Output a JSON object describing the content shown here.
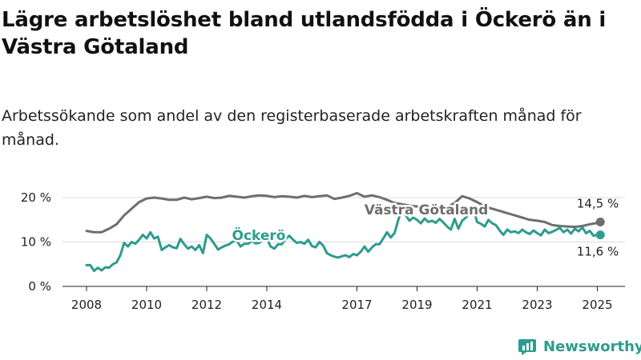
{
  "header": {
    "title": "Lägre arbetslöshet bland utlandsfödda i Öckerö än i Västra Götaland",
    "subtitle": "Arbetssökande som andel av den registerbaserade arbetskraften månad för månad."
  },
  "brand": {
    "name": "Newsworthy",
    "color": "#2c9c8f"
  },
  "chart_data": {
    "type": "line",
    "title": "Lägre arbetslöshet bland utlandsfödda i Öckerö än i Västra Götaland",
    "subtitle": "Arbetssökande som andel av den registerbaserade arbetskraften månad för månad.",
    "xlabel": "",
    "ylabel": "",
    "xlim": [
      2008.0,
      2025.1
    ],
    "ylim": [
      0,
      21
    ],
    "grid": true,
    "y_ticks": [
      {
        "value": 0,
        "label": "0 %"
      },
      {
        "value": 10,
        "label": "10 %"
      },
      {
        "value": 20,
        "label": "20 %"
      }
    ],
    "x_ticks": [
      {
        "value": 2008,
        "label": "2008"
      },
      {
        "value": 2010,
        "label": "2010"
      },
      {
        "value": 2012,
        "label": "2012"
      },
      {
        "value": 2014,
        "label": "2014"
      },
      {
        "value": 2017,
        "label": "2017"
      },
      {
        "value": 2019,
        "label": "2019"
      },
      {
        "value": 2021,
        "label": "2021"
      },
      {
        "value": 2023,
        "label": "2023"
      },
      {
        "value": 2025,
        "label": "2025"
      }
    ],
    "series": [
      {
        "name": "Västra Götaland",
        "color": "#6e6e6e",
        "end_label": "14,5 %",
        "x": [
          2008.0,
          2008.25,
          2008.5,
          2008.75,
          2009.0,
          2009.25,
          2009.5,
          2009.75,
          2010.0,
          2010.25,
          2010.5,
          2010.75,
          2011.0,
          2011.25,
          2011.5,
          2011.75,
          2012.0,
          2012.25,
          2012.5,
          2012.75,
          2013.0,
          2013.25,
          2013.5,
          2013.75,
          2014.0,
          2014.25,
          2014.5,
          2014.75,
          2015.0,
          2015.25,
          2015.5,
          2015.75,
          2016.0,
          2016.25,
          2016.5,
          2016.75,
          2017.0,
          2017.25,
          2017.5,
          2017.75,
          2018.0,
          2018.25,
          2018.5,
          2018.75,
          2019.0,
          2019.25,
          2019.5,
          2019.75,
          2020.0,
          2020.25,
          2020.5,
          2020.75,
          2021.0,
          2021.25,
          2021.5,
          2021.75,
          2022.0,
          2022.25,
          2022.5,
          2022.75,
          2023.0,
          2023.25,
          2023.5,
          2023.75,
          2024.0,
          2024.25,
          2024.5,
          2024.75,
          2025.0,
          2025.1
        ],
        "values": [
          12.5,
          12.2,
          12.2,
          13.0,
          14.0,
          16.0,
          17.5,
          19.0,
          19.8,
          20.0,
          19.8,
          19.5,
          19.5,
          20.0,
          19.6,
          19.9,
          20.2,
          19.9,
          20.0,
          20.4,
          20.2,
          20.0,
          20.3,
          20.5,
          20.4,
          20.1,
          20.3,
          20.2,
          20.0,
          20.4,
          20.1,
          20.3,
          20.5,
          19.7,
          20.0,
          20.4,
          21.0,
          20.2,
          20.5,
          20.1,
          19.5,
          18.8,
          18.5,
          18.2,
          18.0,
          17.9,
          17.8,
          17.5,
          17.8,
          18.8,
          20.3,
          19.8,
          19.0,
          18.0,
          17.5,
          17.0,
          16.5,
          16.0,
          15.5,
          15.0,
          14.8,
          14.5,
          13.8,
          13.6,
          13.5,
          13.4,
          13.6,
          14.0,
          14.3,
          14.5
        ]
      },
      {
        "name": "Öckerö",
        "color": "#2c9c8f",
        "end_label": "11,6 %",
        "x": [
          2008.0,
          2008.125,
          2008.25,
          2008.375,
          2008.5,
          2008.625,
          2008.75,
          2008.875,
          2009.0,
          2009.125,
          2009.25,
          2009.375,
          2009.5,
          2009.625,
          2009.75,
          2009.875,
          2010.0,
          2010.125,
          2010.25,
          2010.375,
          2010.5,
          2010.625,
          2010.75,
          2010.875,
          2011.0,
          2011.125,
          2011.25,
          2011.375,
          2011.5,
          2011.625,
          2011.75,
          2011.875,
          2012.0,
          2012.125,
          2012.25,
          2012.375,
          2012.5,
          2012.625,
          2012.75,
          2012.875,
          2013.0,
          2013.125,
          2013.25,
          2013.375,
          2013.5,
          2013.625,
          2013.75,
          2013.875,
          2014.0,
          2014.125,
          2014.25,
          2014.375,
          2014.5,
          2014.625,
          2014.75,
          2014.875,
          2015.0,
          2015.125,
          2015.25,
          2015.375,
          2015.5,
          2015.625,
          2015.75,
          2015.875,
          2016.0,
          2016.125,
          2016.25,
          2016.375,
          2016.5,
          2016.625,
          2016.75,
          2016.875,
          2017.0,
          2017.125,
          2017.25,
          2017.375,
          2017.5,
          2017.625,
          2017.75,
          2017.875,
          2018.0,
          2018.125,
          2018.25,
          2018.375,
          2018.5,
          2018.625,
          2018.75,
          2018.875,
          2019.0,
          2019.125,
          2019.25,
          2019.375,
          2019.5,
          2019.625,
          2019.75,
          2019.875,
          2020.0,
          2020.125,
          2020.25,
          2020.375,
          2020.5,
          2020.625,
          2020.75,
          2020.875,
          2021.0,
          2021.125,
          2021.25,
          2021.375,
          2021.5,
          2021.625,
          2021.75,
          2021.875,
          2022.0,
          2022.125,
          2022.25,
          2022.375,
          2022.5,
          2022.625,
          2022.75,
          2022.875,
          2023.0,
          2023.125,
          2023.25,
          2023.375,
          2023.5,
          2023.625,
          2023.75,
          2023.875,
          2024.0,
          2024.125,
          2024.25,
          2024.375,
          2024.5,
          2024.625,
          2024.75,
          2024.875,
          2025.0,
          2025.1
        ],
        "values": [
          4.8,
          4.8,
          3.5,
          4.2,
          3.6,
          4.3,
          4.2,
          5.0,
          5.4,
          7.0,
          9.8,
          9.0,
          10.0,
          9.6,
          10.5,
          11.6,
          10.8,
          12.2,
          10.8,
          11.2,
          8.2,
          8.8,
          9.3,
          8.8,
          8.6,
          10.7,
          9.5,
          8.5,
          9.0,
          8.2,
          9.3,
          7.5,
          11.6,
          10.8,
          9.6,
          8.3,
          8.8,
          9.2,
          9.5,
          10.1,
          10.3,
          9.0,
          9.6,
          9.6,
          10.2,
          9.7,
          9.8,
          10.5,
          10.9,
          9.0,
          8.5,
          9.5,
          9.5,
          10.7,
          11.4,
          10.5,
          9.8,
          10.0,
          9.6,
          10.5,
          9.1,
          8.8,
          10.0,
          9.2,
          7.5,
          7.0,
          6.7,
          6.5,
          6.8,
          7.0,
          6.6,
          7.3,
          7.0,
          7.8,
          9.0,
          7.8,
          8.8,
          9.5,
          9.5,
          10.8,
          12.2,
          11.0,
          12.0,
          15.0,
          17.5,
          16.0,
          14.8,
          15.5,
          15.0,
          14.2,
          15.3,
          14.5,
          14.8,
          14.3,
          15.2,
          14.4,
          13.5,
          12.8,
          15.2,
          13.0,
          14.8,
          15.5,
          16.5,
          17.5,
          14.5,
          14.1,
          13.5,
          15.0,
          14.2,
          13.8,
          12.6,
          11.6,
          12.8,
          12.2,
          12.4,
          12.0,
          12.8,
          12.2,
          11.8,
          12.6,
          12.0,
          11.5,
          12.8,
          12.0,
          12.3,
          12.7,
          13.2,
          12.2,
          12.8,
          11.9,
          13.0,
          12.4,
          13.3,
          12.0,
          12.5,
          11.4,
          11.6,
          11.6
        ]
      }
    ]
  }
}
